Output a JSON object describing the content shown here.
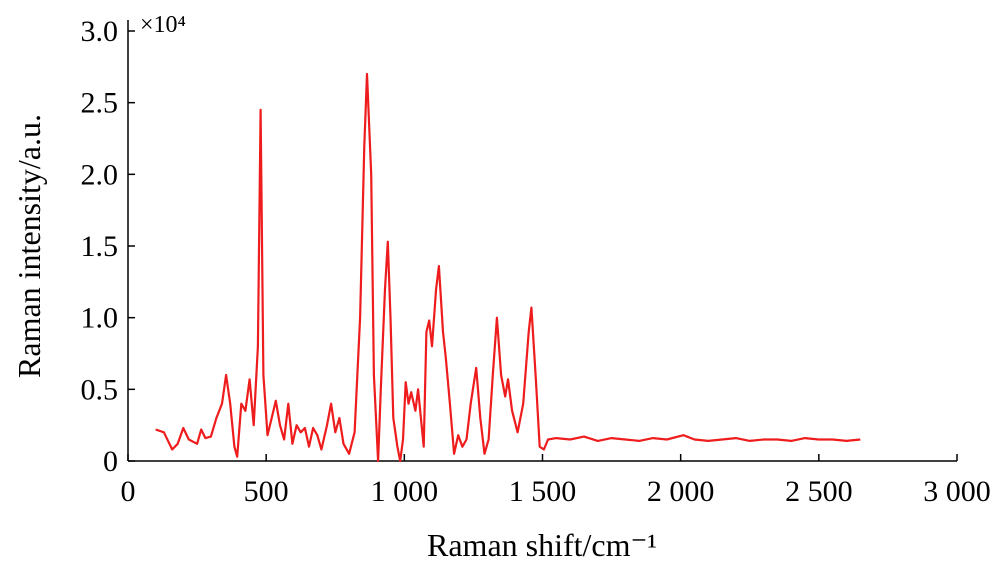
{
  "chart_data": {
    "type": "line",
    "x_label": "Raman shift/cm⁻¹",
    "y_label": "Raman intensity/a.u.",
    "y_multiplier": "×10⁴",
    "xlim": [
      0,
      3000
    ],
    "ylim": [
      0,
      3
    ],
    "xticks": [
      0,
      500,
      {
        "value": 1000,
        "label": "1 000"
      },
      {
        "value": 1500,
        "label": "1 500"
      },
      {
        "value": 2000,
        "label": "2 000"
      },
      {
        "value": 2500,
        "label": "2 500"
      },
      {
        "value": 3000,
        "label": "3 000"
      }
    ],
    "yticks": [
      0,
      0.5,
      {
        "value": 1,
        "label": "1.0"
      },
      1.5,
      {
        "value": 2,
        "label": "2.0"
      },
      2.5,
      {
        "value": 3,
        "label": "3.0"
      }
    ],
    "x": [
      100,
      130,
      160,
      180,
      200,
      220,
      250,
      265,
      280,
      300,
      320,
      340,
      355,
      370,
      385,
      395,
      410,
      425,
      440,
      455,
      470,
      480,
      490,
      505,
      520,
      535,
      550,
      565,
      580,
      595,
      610,
      625,
      640,
      655,
      670,
      685,
      700,
      720,
      735,
      750,
      765,
      780,
      800,
      820,
      840,
      855,
      865,
      880,
      890,
      905,
      915,
      930,
      940,
      950,
      960,
      975,
      985,
      995,
      1005,
      1015,
      1025,
      1040,
      1050,
      1060,
      1070,
      1080,
      1090,
      1100,
      1115,
      1125,
      1140,
      1150,
      1165,
      1180,
      1195,
      1210,
      1225,
      1240,
      1260,
      1275,
      1290,
      1305,
      1320,
      1335,
      1350,
      1365,
      1375,
      1390,
      1410,
      1430,
      1450,
      1460,
      1475,
      1490,
      1505,
      1520,
      1550,
      1600,
      1650,
      1700,
      1750,
      1800,
      1850,
      1900,
      1950,
      2010,
      2050,
      2100,
      2150,
      2200,
      2250,
      2300,
      2350,
      2400,
      2450,
      2500,
      2550,
      2600,
      2650
    ],
    "series": [
      {
        "color": "#ee1c1c",
        "values": [
          0.22,
          0.2,
          0.08,
          0.12,
          0.23,
          0.15,
          0.12,
          0.22,
          0.16,
          0.17,
          0.3,
          0.4,
          0.6,
          0.4,
          0.1,
          0.03,
          0.4,
          0.35,
          0.57,
          0.25,
          0.8,
          2.45,
          0.6,
          0.18,
          0.3,
          0.42,
          0.25,
          0.15,
          0.4,
          0.12,
          0.25,
          0.2,
          0.23,
          0.1,
          0.23,
          0.18,
          0.08,
          0.25,
          0.4,
          0.2,
          0.3,
          0.12,
          0.05,
          0.2,
          1.0,
          2.2,
          2.7,
          2.0,
          0.6,
          0.0,
          0.5,
          1.2,
          1.53,
          1.0,
          0.3,
          0.1,
          0.0,
          0.15,
          0.55,
          0.4,
          0.48,
          0.35,
          0.5,
          0.3,
          0.1,
          0.9,
          0.98,
          0.8,
          1.2,
          1.36,
          0.9,
          0.72,
          0.4,
          0.05,
          0.18,
          0.1,
          0.15,
          0.4,
          0.65,
          0.3,
          0.05,
          0.15,
          0.6,
          1.0,
          0.6,
          0.45,
          0.57,
          0.35,
          0.2,
          0.4,
          0.9,
          1.07,
          0.6,
          0.1,
          0.08,
          0.15,
          0.16,
          0.15,
          0.17,
          0.14,
          0.16,
          0.15,
          0.14,
          0.16,
          0.15,
          0.18,
          0.15,
          0.14,
          0.15,
          0.16,
          0.14,
          0.15,
          0.15,
          0.14,
          0.16,
          0.15,
          0.15,
          0.14,
          0.15
        ]
      }
    ]
  }
}
